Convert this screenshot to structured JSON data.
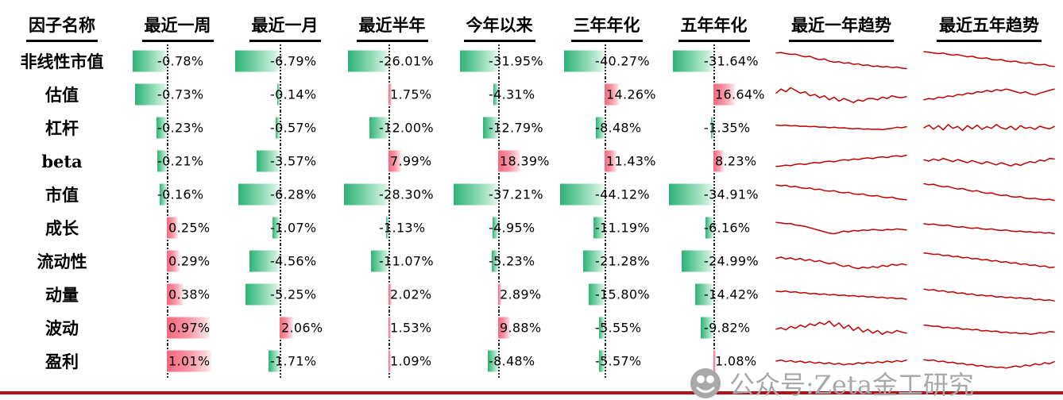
{
  "watermark": {
    "text": "公众号:Zeta金工研究"
  },
  "colors": {
    "negative_bar_green": "#2fb277",
    "positive_bar_red": "#f4677b",
    "sparkline": "#c00000",
    "zero_line": "#2b2b2b",
    "bottom_rule": "#b01218",
    "watermark_gray": "#a8a8a8"
  },
  "chart_data": {
    "type": "table",
    "title": "因子表现一览 (factor performance table with data bars and trend sparklines)",
    "columns": [
      "因子名称",
      "最近一周",
      "最近一月",
      "最近半年",
      "今年以来",
      "三年年化",
      "五年年化",
      "最近一年趋势",
      "最近五年趋势"
    ],
    "value_columns": [
      "最近一周",
      "最近一月",
      "最近半年",
      "今年以来",
      "三年年化",
      "五年年化"
    ],
    "bar_rule": "green bars extend left of dotted zero line for negative values; pink/red bars extend right for positive values; bars scaled to each column's max absolute value",
    "sparkline_note": "red line charts, trend over last 1 year and last 5 years, y normalized 0-100",
    "rows": [
      {
        "name": "非线性市值",
        "values": [
          -0.78,
          -6.79,
          -26.01,
          -31.95,
          -40.27,
          -31.64
        ],
        "labels": [
          "-0.78%",
          "-6.79%",
          "-26.01%",
          "-31.95%",
          "-40.27%",
          "-31.64%"
        ],
        "trend_1y": [
          80,
          82,
          78,
          75,
          76,
          70,
          66,
          68,
          60,
          55,
          58,
          50,
          46,
          48,
          42,
          44,
          38,
          40,
          34,
          36,
          30,
          32,
          28,
          30,
          26,
          28,
          24,
          22
        ],
        "trend_5y": [
          85,
          83,
          80,
          78,
          80,
          75,
          72,
          74,
          70,
          66,
          68,
          62,
          60,
          62,
          56,
          54,
          56,
          50,
          48,
          50,
          44,
          42,
          44,
          38,
          36,
          38,
          32,
          30
        ]
      },
      {
        "name": "估值",
        "values": [
          -0.73,
          -0.14,
          1.75,
          -4.31,
          14.26,
          16.64
        ],
        "labels": [
          "-0.73%",
          "-0.14%",
          "1.75%",
          "-4.31%",
          "14.26%",
          "16.64%"
        ],
        "trend_1y": [
          55,
          70,
          60,
          75,
          65,
          55,
          60,
          45,
          50,
          38,
          45,
          30,
          40,
          25,
          35,
          28,
          20,
          30,
          25,
          35,
          35,
          30,
          40,
          35,
          45,
          40,
          38,
          42
        ],
        "trend_5y": [
          30,
          35,
          32,
          40,
          38,
          45,
          42,
          50,
          48,
          55,
          52,
          60,
          58,
          65,
          60,
          68,
          64,
          70,
          66,
          60,
          55,
          60,
          52,
          48,
          55,
          60,
          65,
          70
        ]
      },
      {
        "name": "杠杆",
        "values": [
          -0.23,
          -0.57,
          -12.0,
          -12.79,
          -8.48,
          -1.35
        ],
        "labels": [
          "-0.23%",
          "-0.57%",
          "-12.00%",
          "-12.79%",
          "-8.48%",
          "-1.35%"
        ],
        "trend_1y": [
          60,
          58,
          60,
          57,
          58,
          55,
          56,
          54,
          55,
          52,
          53,
          50,
          52,
          49,
          50,
          48,
          46,
          48,
          45,
          46,
          44,
          45,
          43,
          46,
          48,
          52,
          50,
          54
        ],
        "trend_5y": [
          50,
          60,
          45,
          58,
          42,
          62,
          48,
          55,
          40,
          58,
          46,
          60,
          44,
          54,
          48,
          62,
          50,
          45,
          56,
          42,
          58,
          48,
          52,
          44,
          56,
          50,
          46,
          55
        ]
      },
      {
        "name": "beta",
        "values": [
          -0.21,
          -3.57,
          7.99,
          18.39,
          11.43,
          8.23
        ],
        "labels": [
          "-0.21%",
          "-3.57%",
          "7.99%",
          "18.39%",
          "11.43%",
          "8.23%"
        ],
        "trend_1y": [
          30,
          32,
          35,
          33,
          38,
          40,
          37,
          42,
          45,
          43,
          48,
          50,
          47,
          52,
          55,
          53,
          58,
          56,
          60,
          62,
          59,
          64,
          66,
          63,
          68,
          70,
          67,
          72
        ],
        "trend_5y": [
          55,
          50,
          58,
          52,
          60,
          54,
          48,
          56,
          50,
          44,
          52,
          46,
          40,
          48,
          42,
          36,
          44,
          38,
          32,
          40,
          34,
          42,
          48,
          44,
          54,
          50,
          60,
          58
        ]
      },
      {
        "name": "市值",
        "values": [
          -0.16,
          -6.28,
          -28.3,
          -37.21,
          -44.12,
          -34.91
        ],
        "labels": [
          "-0.16%",
          "-6.28%",
          "-28.30%",
          "-37.21%",
          "-44.12%",
          "-34.91%"
        ],
        "trend_1y": [
          85,
          82,
          84,
          78,
          80,
          75,
          72,
          74,
          68,
          70,
          64,
          62,
          64,
          58,
          56,
          58,
          52,
          50,
          52,
          46,
          44,
          46,
          40,
          38,
          40,
          34,
          32,
          30
        ],
        "trend_5y": [
          90,
          86,
          88,
          82,
          78,
          80,
          74,
          70,
          72,
          66,
          62,
          64,
          58,
          54,
          56,
          50,
          46,
          48,
          42,
          40,
          42,
          36,
          34,
          36,
          32,
          30,
          32,
          28
        ]
      },
      {
        "name": "成长",
        "values": [
          0.25,
          -1.07,
          -1.13,
          -4.95,
          -11.19,
          -6.16
        ],
        "labels": [
          "0.25%",
          "-1.07%",
          "-1.13%",
          "-4.95%",
          "-11.19%",
          "-6.16%"
        ],
        "trend_1y": [
          70,
          68,
          65,
          66,
          60,
          58,
          55,
          50,
          45,
          40,
          35,
          30,
          28,
          32,
          38,
          35,
          40,
          38,
          42,
          40,
          44,
          42,
          40,
          44,
          42,
          46,
          44,
          42
        ],
        "trend_5y": [
          65,
          62,
          64,
          60,
          58,
          60,
          55,
          52,
          54,
          50,
          48,
          50,
          46,
          44,
          46,
          42,
          40,
          42,
          38,
          36,
          38,
          34,
          36,
          32,
          34,
          30,
          32,
          28
        ]
      },
      {
        "name": "流动性",
        "values": [
          0.29,
          -4.56,
          -11.07,
          -5.23,
          -21.28,
          -24.99
        ],
        "labels": [
          "0.29%",
          "-4.56%",
          "-11.07%",
          "-5.23%",
          "-21.28%",
          "-24.99%"
        ],
        "trend_1y": [
          60,
          65,
          58,
          62,
          55,
          60,
          52,
          56,
          48,
          52,
          45,
          40,
          44,
          36,
          30,
          34,
          26,
          22,
          28,
          24,
          30,
          26,
          34,
          30,
          38,
          34,
          40,
          36
        ],
        "trend_5y": [
          80,
          78,
          75,
          76,
          70,
          72,
          66,
          68,
          62,
          64,
          58,
          60,
          54,
          56,
          50,
          52,
          46,
          48,
          42,
          44,
          38,
          40,
          34,
          36,
          30,
          32,
          26,
          28
        ]
      },
      {
        "name": "动量",
        "values": [
          0.38,
          -5.25,
          2.02,
          2.89,
          -15.8,
          -14.42
        ],
        "labels": [
          "0.38%",
          "-5.25%",
          "2.02%",
          "2.89%",
          "-15.80%",
          "-14.42%"
        ],
        "trend_1y": [
          62,
          60,
          63,
          58,
          60,
          55,
          57,
          52,
          54,
          50,
          52,
          48,
          50,
          46,
          48,
          44,
          46,
          42,
          44,
          40,
          42,
          38,
          40,
          36,
          38,
          34,
          36,
          32
        ],
        "trend_5y": [
          70,
          66,
          68,
          62,
          64,
          58,
          60,
          54,
          56,
          50,
          52,
          46,
          48,
          44,
          46,
          40,
          42,
          38,
          40,
          36,
          38,
          34,
          36,
          30,
          32,
          28,
          30,
          26
        ]
      },
      {
        "name": "波动",
        "values": [
          0.97,
          2.06,
          1.53,
          9.88,
          -5.55,
          -9.82
        ],
        "labels": [
          "0.97%",
          "2.06%",
          "1.53%",
          "9.88%",
          "-5.55%",
          "-9.82%"
        ],
        "trend_1y": [
          45,
          50,
          42,
          55,
          48,
          60,
          52,
          65,
          58,
          70,
          62,
          75,
          55,
          68,
          48,
          60,
          40,
          52,
          34,
          44,
          30,
          40,
          26,
          36,
          30,
          40,
          34,
          30
        ],
        "trend_5y": [
          60,
          58,
          55,
          56,
          50,
          52,
          48,
          50,
          44,
          46,
          42,
          44,
          38,
          40,
          36,
          38,
          32,
          34,
          30,
          32,
          28,
          30,
          26,
          28,
          32,
          30,
          36,
          34
        ]
      },
      {
        "name": "盈利",
        "values": [
          1.01,
          -1.71,
          1.09,
          -8.48,
          -5.57,
          1.08
        ],
        "labels": [
          "1.01%",
          "-1.71%",
          "1.09%",
          "-8.48%",
          "-5.57%",
          "1.08%"
        ],
        "trend_1y": [
          50,
          54,
          48,
          52,
          46,
          50,
          44,
          48,
          42,
          46,
          40,
          44,
          38,
          42,
          36,
          40,
          38,
          44,
          40,
          46,
          42,
          48,
          44,
          50,
          46,
          52,
          48,
          54
        ],
        "trend_5y": [
          55,
          52,
          54,
          48,
          50,
          44,
          46,
          40,
          42,
          36,
          38,
          32,
          34,
          28,
          30,
          26,
          28,
          24,
          28,
          32,
          28,
          36,
          32,
          40,
          36,
          44,
          40,
          48
        ]
      }
    ]
  }
}
